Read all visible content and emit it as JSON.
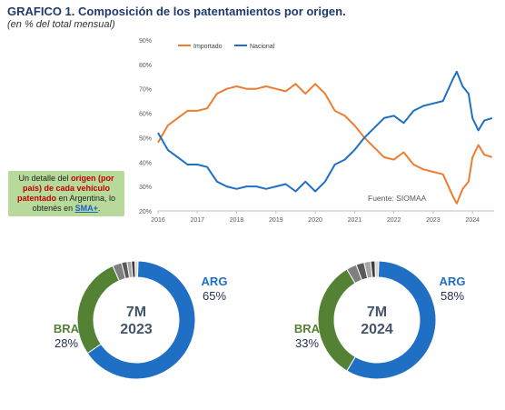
{
  "header": {
    "title": "GRAFICO 1. Composición de los patentamientos por origen.",
    "subtitle": "(en % del total mensual)"
  },
  "callout": {
    "part1": "Un detalle del ",
    "highlight": "origen (por país) de cada vehículo patentado",
    "part2": " en Argentina, lo obtenés en ",
    "link": "SMA+",
    "part3": "."
  },
  "source": "Fuente: SIOMAA",
  "colors": {
    "importado": "#ed7d31",
    "nacional": "#1f6fc5",
    "bra": "#548235",
    "arg": "#1f6fc5"
  },
  "chart_data": [
    {
      "type": "line",
      "title": "",
      "xlabel": "",
      "ylabel": "",
      "legend_position": "top-left",
      "ylim": [
        20,
        90
      ],
      "yticks": [
        "20%",
        "30%",
        "40%",
        "50%",
        "60%",
        "70%",
        "80%",
        "90%"
      ],
      "xticks": [
        "2016",
        "2017",
        "2018",
        "2019",
        "2020",
        "2021",
        "2022",
        "2023",
        "2024"
      ],
      "grid": false,
      "series": [
        {
          "name": "Importado",
          "x": [
            2016.0,
            2016.25,
            2016.5,
            2016.75,
            2017.0,
            2017.25,
            2017.5,
            2017.75,
            2018.0,
            2018.25,
            2018.5,
            2018.75,
            2019.0,
            2019.25,
            2019.5,
            2019.75,
            2020.0,
            2020.25,
            2020.5,
            2020.75,
            2021.0,
            2021.25,
            2021.5,
            2021.75,
            2022.0,
            2022.25,
            2022.5,
            2022.75,
            2023.0,
            2023.25,
            2023.5,
            2023.6,
            2023.75,
            2023.9,
            2024.0,
            2024.15,
            2024.3,
            2024.5
          ],
          "values": [
            48,
            55,
            58,
            61,
            61,
            62,
            68,
            70,
            71,
            70,
            70,
            71,
            70,
            69,
            72,
            68,
            72,
            68,
            61,
            59,
            55,
            50,
            46,
            42,
            41,
            44,
            39,
            37,
            36,
            35,
            26,
            23,
            29,
            32,
            42,
            47,
            43,
            42
          ]
        },
        {
          "name": "Nacional",
          "x": [
            2016.0,
            2016.25,
            2016.5,
            2016.75,
            2017.0,
            2017.25,
            2017.5,
            2017.75,
            2018.0,
            2018.25,
            2018.5,
            2018.75,
            2019.0,
            2019.25,
            2019.5,
            2019.75,
            2020.0,
            2020.25,
            2020.5,
            2020.75,
            2021.0,
            2021.25,
            2021.5,
            2021.75,
            2022.0,
            2022.25,
            2022.5,
            2022.75,
            2023.0,
            2023.25,
            2023.5,
            2023.6,
            2023.75,
            2023.9,
            2024.0,
            2024.15,
            2024.3,
            2024.5
          ],
          "values": [
            52,
            45,
            42,
            39,
            39,
            38,
            32,
            30,
            29,
            30,
            30,
            29,
            30,
            31,
            28,
            32,
            28,
            32,
            39,
            41,
            45,
            50,
            54,
            58,
            59,
            56,
            61,
            63,
            64,
            65,
            74,
            77,
            71,
            68,
            58,
            53,
            57,
            58
          ]
        }
      ]
    },
    {
      "type": "pie",
      "center_line1": "7M",
      "center_line2": "2023",
      "slices": [
        {
          "name": "ARG",
          "label": "65%",
          "value": 65
        },
        {
          "name": "BRA",
          "label": "28%",
          "value": 28
        },
        {
          "name": "",
          "label": "",
          "value": 2.5
        },
        {
          "name": "",
          "label": "",
          "value": 1.5
        },
        {
          "name": "",
          "label": "",
          "value": 1.2
        },
        {
          "name": "",
          "label": "",
          "value": 1.0
        },
        {
          "name": "",
          "label": "",
          "value": 0.8
        }
      ]
    },
    {
      "type": "pie",
      "center_line1": "7M",
      "center_line2": "2024",
      "slices": [
        {
          "name": "ARG",
          "label": "58%",
          "value": 58
        },
        {
          "name": "BRA",
          "label": "33%",
          "value": 33
        },
        {
          "name": "",
          "label": "",
          "value": 2.8
        },
        {
          "name": "",
          "label": "",
          "value": 2.2
        },
        {
          "name": "",
          "label": "",
          "value": 1.8
        },
        {
          "name": "",
          "label": "",
          "value": 1.2
        },
        {
          "name": "",
          "label": "",
          "value": 1.0
        }
      ]
    }
  ]
}
